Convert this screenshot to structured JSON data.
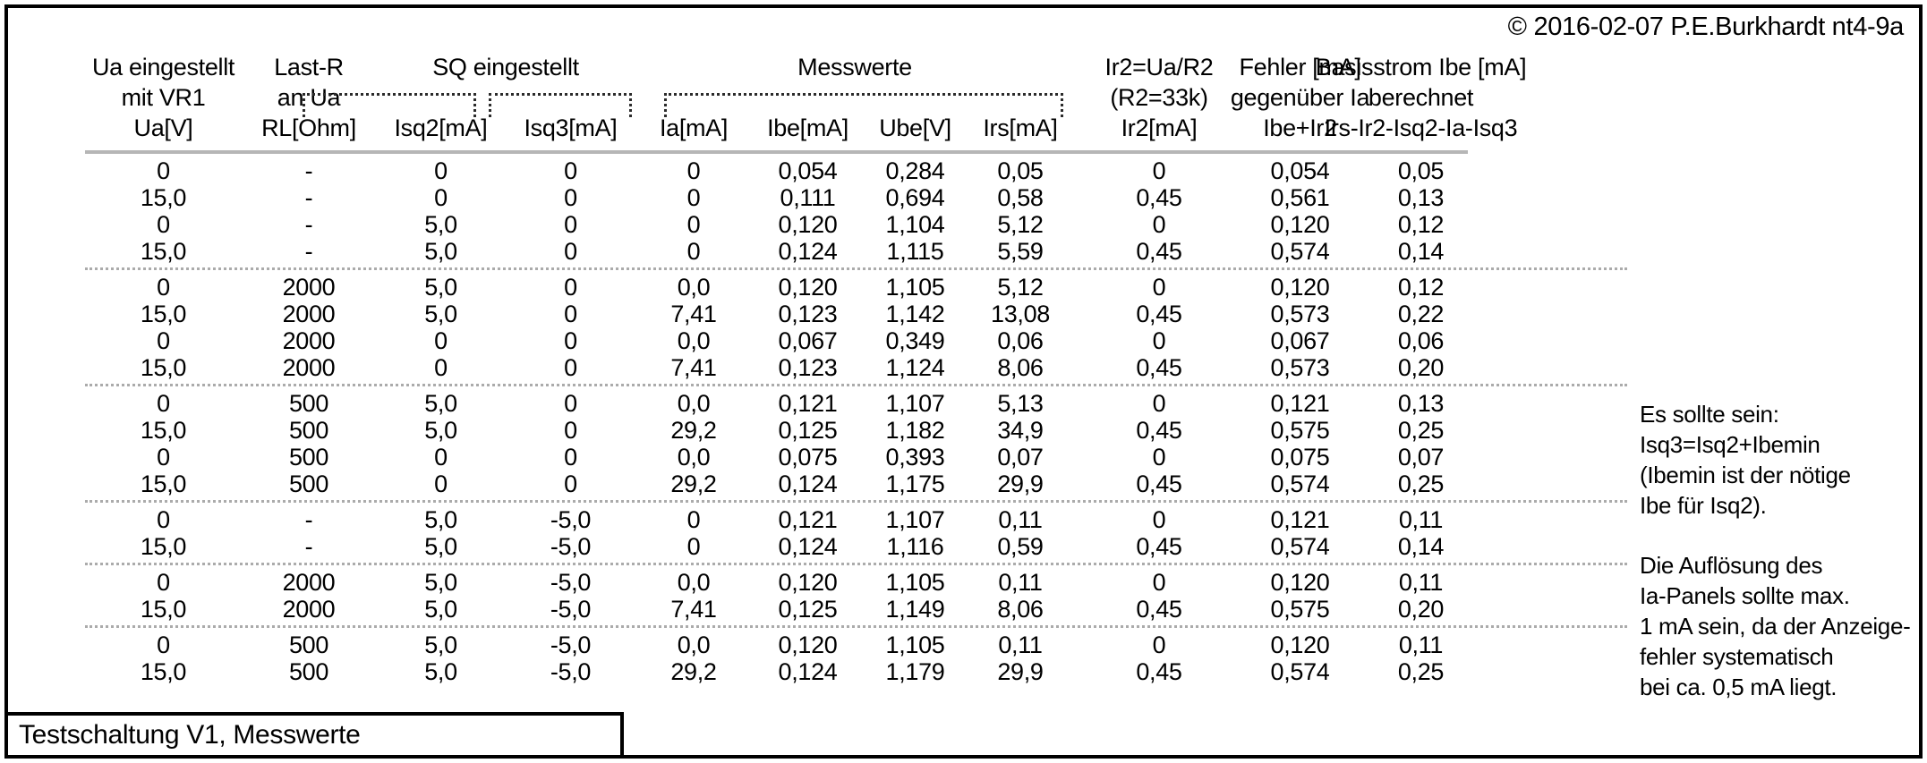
{
  "copyright": "© 2016-02-07 P.E.Burkhardt nt4-9a",
  "footer_box": "Testschaltung V1, Messwerte",
  "table": {
    "group_row": {
      "ua": "Ua eingestellt",
      "last": "Last-R",
      "sq": "SQ eingestellt",
      "mess": "Messwerte",
      "ir2": "Ir2=Ua/R2",
      "fehler": "Fehler [mA]",
      "basis": "Basisstrom Ibe [mA]"
    },
    "sub_row": {
      "ua": "mit VR1",
      "last": "an Ua",
      "ir2": "(R2=33k)",
      "fehler": "gegenüber Ia",
      "basis": "berechnet"
    },
    "unit_row": [
      "Ua[V]",
      "RL[Ohm]",
      "Isq2[mA]",
      "Isq3[mA]",
      "Ia[mA]",
      "Ibe[mA]",
      "Ube[V]",
      "Irs[mA]",
      "Ir2[mA]",
      "Ibe+Ir2",
      "Irs-Ir2-Isq2-Ia-Isq3"
    ],
    "rows": [
      [
        "0",
        "-",
        "0",
        "0",
        "0",
        "0,054",
        "0,284",
        "0,05",
        "0",
        "0,054",
        "0,05"
      ],
      [
        "15,0",
        "-",
        "0",
        "0",
        "0",
        "0,111",
        "0,694",
        "0,58",
        "0,45",
        "0,561",
        "0,13"
      ],
      [
        "0",
        "-",
        "5,0",
        "0",
        "0",
        "0,120",
        "1,104",
        "5,12",
        "0",
        "0,120",
        "0,12"
      ],
      [
        "15,0",
        "-",
        "5,0",
        "0",
        "0",
        "0,124",
        "1,115",
        "5,59",
        "0,45",
        "0,574",
        "0,14"
      ],
      [
        "0",
        "2000",
        "5,0",
        "0",
        "0,0",
        "0,120",
        "1,105",
        "5,12",
        "0",
        "0,120",
        "0,12"
      ],
      [
        "15,0",
        "2000",
        "5,0",
        "0",
        "7,41",
        "0,123",
        "1,142",
        "13,08",
        "0,45",
        "0,573",
        "0,22"
      ],
      [
        "0",
        "2000",
        "0",
        "0",
        "0,0",
        "0,067",
        "0,349",
        "0,06",
        "0",
        "0,067",
        "0,06"
      ],
      [
        "15,0",
        "2000",
        "0",
        "0",
        "7,41",
        "0,123",
        "1,124",
        "8,06",
        "0,45",
        "0,573",
        "0,20"
      ],
      [
        "0",
        "500",
        "5,0",
        "0",
        "0,0",
        "0,121",
        "1,107",
        "5,13",
        "0",
        "0,121",
        "0,13"
      ],
      [
        "15,0",
        "500",
        "5,0",
        "0",
        "29,2",
        "0,125",
        "1,182",
        "34,9",
        "0,45",
        "0,575",
        "0,25"
      ],
      [
        "0",
        "500",
        "0",
        "0",
        "0,0",
        "0,075",
        "0,393",
        "0,07",
        "0",
        "0,075",
        "0,07"
      ],
      [
        "15,0",
        "500",
        "0",
        "0",
        "29,2",
        "0,124",
        "1,175",
        "29,9",
        "0,45",
        "0,574",
        "0,25"
      ],
      [
        "0",
        "-",
        "5,0",
        "-5,0",
        "0",
        "0,121",
        "1,107",
        "0,11",
        "0",
        "0,121",
        "0,11"
      ],
      [
        "15,0",
        "-",
        "5,0",
        "-5,0",
        "0",
        "0,124",
        "1,116",
        "0,59",
        "0,45",
        "0,574",
        "0,14"
      ],
      [
        "0",
        "2000",
        "5,0",
        "-5,0",
        "0,0",
        "0,120",
        "1,105",
        "0,11",
        "0",
        "0,120",
        "0,11"
      ],
      [
        "15,0",
        "2000",
        "5,0",
        "-5,0",
        "7,41",
        "0,125",
        "1,149",
        "8,06",
        "0,45",
        "0,575",
        "0,20"
      ],
      [
        "0",
        "500",
        "5,0",
        "-5,0",
        "0,0",
        "0,120",
        "1,105",
        "0,11",
        "0",
        "0,120",
        "0,11"
      ],
      [
        "15,0",
        "500",
        "5,0",
        "-5,0",
        "29,2",
        "0,124",
        "1,179",
        "29,9",
        "0,45",
        "0,574",
        "0,25"
      ]
    ],
    "dividers_after": [
      4,
      8,
      12,
      14,
      16
    ]
  },
  "notes": [
    {
      "lines": [
        "Es sollte sein:",
        "Isq3=Isq2+Ibemin",
        "(Ibemin ist der nötige",
        "Ibe für Isq2)."
      ]
    },
    {
      "lines": [
        "Die Auflösung des",
        "Ia-Panels sollte max.",
        "1 mA sein, da der Anzeige-",
        "fehler systematisch",
        "bei ca. 0,5 mA liegt."
      ]
    }
  ]
}
